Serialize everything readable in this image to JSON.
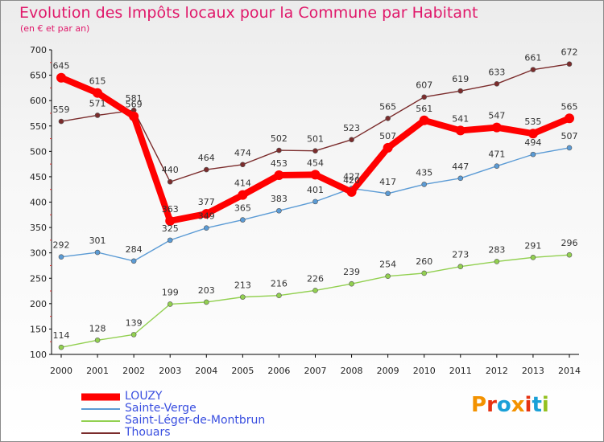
{
  "header": {
    "title": "Evolution des Impôts locaux pour la Commune par Habitant",
    "subtitle": "(en € et par an)"
  },
  "logo": {
    "text": "Proxiti",
    "colors": [
      "#f39200",
      "#e63312",
      "#1aa0d7",
      "#f39200",
      "#e63312",
      "#1aa0d7",
      "#93c01f"
    ]
  },
  "chart_data": {
    "type": "line",
    "title": "Evolution des Impôts locaux pour la Commune par Habitant",
    "subtitle": "(en € et par an)",
    "xlabel": "",
    "ylabel": "",
    "ylim": [
      100,
      700
    ],
    "yticks": [
      100,
      150,
      200,
      250,
      300,
      350,
      400,
      450,
      500,
      550,
      600,
      650,
      700
    ],
    "grid": false,
    "legend_position": "bottom-left",
    "categories": [
      "2000",
      "2001",
      "2002",
      "2003",
      "2004",
      "2005",
      "2006",
      "2007",
      "2008",
      "2009",
      "2010",
      "2011",
      "2012",
      "2013",
      "2014"
    ],
    "series": [
      {
        "name": "LOUZY",
        "color": "#ff0000",
        "values": [
          645,
          615,
          569,
          363,
          377,
          414,
          453,
          454,
          420,
          507,
          561,
          541,
          547,
          535,
          565
        ],
        "labels": [
          "645",
          "615",
          "569",
          "363",
          "377",
          "414",
          "453",
          "454",
          "420",
          "507",
          "561",
          "541",
          "547",
          "535",
          "565"
        ]
      },
      {
        "name": "Sainte-Verge",
        "color": "#5b9bd5",
        "values": [
          292,
          301,
          284,
          325,
          349,
          365,
          383,
          401,
          427,
          417,
          435,
          447,
          471,
          494,
          507
        ],
        "labels": [
          "292",
          "301",
          "284",
          "325",
          "349",
          "365",
          "383",
          "401",
          "427",
          "417",
          "435",
          "447",
          "471",
          "494",
          "507"
        ]
      },
      {
        "name": "Saint-Léger-de-Montbrun",
        "color": "#92d050",
        "values": [
          114,
          128,
          139,
          199,
          203,
          213,
          216,
          226,
          239,
          254,
          260,
          273,
          283,
          291,
          296
        ],
        "labels": [
          "114",
          "128",
          "139",
          "199",
          "203",
          "213",
          "216",
          "226",
          "239",
          "254",
          "260",
          "273",
          "283",
          "291",
          "296"
        ]
      },
      {
        "name": "Thouars",
        "color": "#7b2c2c",
        "values": [
          559,
          571,
          581,
          440,
          464,
          474,
          502,
          501,
          523,
          565,
          607,
          619,
          633,
          661,
          672
        ],
        "labels": [
          "559",
          "571",
          "581",
          "440",
          "464",
          "474",
          "502",
          "501",
          "523",
          "565",
          "607",
          "619",
          "633",
          "661",
          "672"
        ]
      }
    ]
  }
}
